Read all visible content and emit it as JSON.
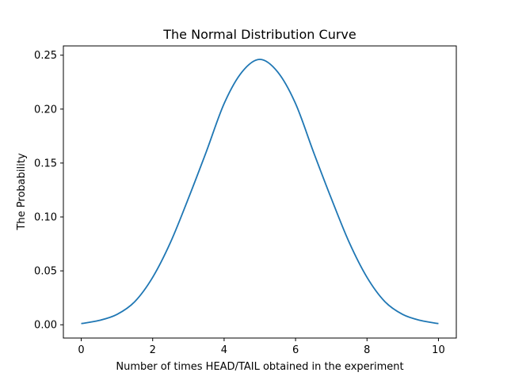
{
  "chart_data": {
    "type": "line",
    "title": "The Normal Distribution Curve",
    "xlabel": "Number of times HEAD/TAIL obtained in the experiment",
    "ylabel": "The Probability",
    "xlim": [
      -0.5,
      10.5
    ],
    "ylim": [
      -0.0123,
      0.2586
    ],
    "x_ticks": [
      0,
      2,
      4,
      6,
      8,
      10
    ],
    "x_tick_labels": [
      "0",
      "2",
      "4",
      "6",
      "8",
      "10"
    ],
    "y_ticks": [
      0.0,
      0.05,
      0.1,
      0.15,
      0.2,
      0.25
    ],
    "y_tick_labels": [
      "0.00",
      "0.05",
      "0.10",
      "0.15",
      "0.20",
      "0.25"
    ],
    "grid": false,
    "legend": "none",
    "series": [
      {
        "color": "#1f77b4",
        "x": [
          0,
          0.5,
          1,
          1.5,
          2,
          2.5,
          3,
          3.5,
          4,
          4.5,
          5,
          5.5,
          6,
          6.5,
          7,
          7.5,
          8,
          8.5,
          9,
          9.5,
          10
        ],
        "y": [
          0.0011,
          0.004,
          0.0096,
          0.0215,
          0.044,
          0.0765,
          0.1172,
          0.1604,
          0.2051,
          0.2344,
          0.2461,
          0.2344,
          0.2051,
          0.1604,
          0.1172,
          0.0765,
          0.044,
          0.0215,
          0.0096,
          0.004,
          0.0011
        ]
      }
    ]
  }
}
